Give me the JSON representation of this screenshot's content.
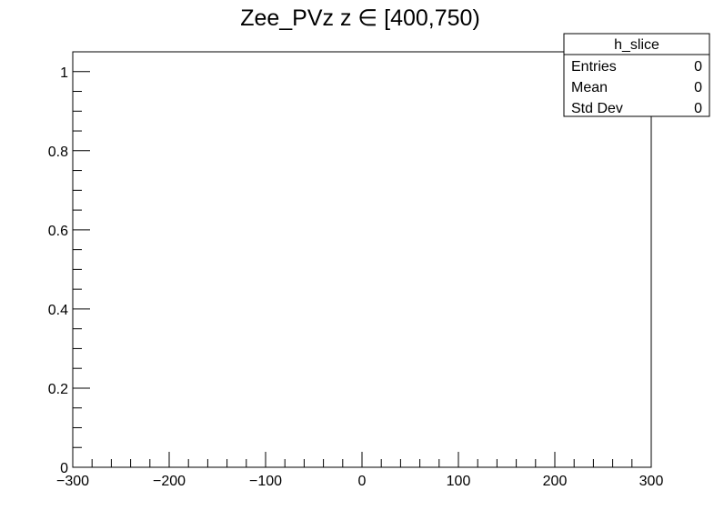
{
  "chart_data": {
    "type": "histogram",
    "title": "Zee_PVz z ∈ [400,750)",
    "xlabel": "",
    "ylabel": "",
    "xlim": [
      -300,
      300
    ],
    "ylim": [
      0,
      1.05
    ],
    "x_ticks": [
      -300,
      -200,
      -100,
      0,
      100,
      200,
      300
    ],
    "x_tick_labels": [
      "−300",
      "−200",
      "−100",
      "0",
      "100",
      "200",
      "300"
    ],
    "y_ticks": [
      0,
      0.2,
      0.4,
      0.6,
      0.8,
      1
    ],
    "y_tick_labels": [
      "0",
      "0.2",
      "0.4",
      "0.6",
      "0.8",
      "1"
    ],
    "x_minor_step": 20,
    "y_minor_step": 0.05,
    "grid": false,
    "series": [
      {
        "values": []
      }
    ],
    "stats_box": {
      "name": "h_slice",
      "rows": [
        {
          "label": "Entries",
          "value": "0"
        },
        {
          "label": "Mean",
          "value": "0"
        },
        {
          "label": "Std Dev",
          "value": "0"
        }
      ]
    }
  }
}
